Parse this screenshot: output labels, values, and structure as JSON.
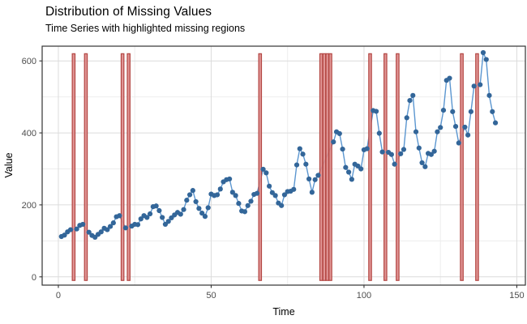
{
  "header": {
    "title": "Distribution of Missing Values",
    "subtitle": "Time Series with highlighted missing regions"
  },
  "chart_data": {
    "type": "line",
    "title": "Distribution of Missing Values",
    "subtitle": "Time Series with highlighted missing regions",
    "xlabel": "Time",
    "ylabel": "Value",
    "xlim": [
      -5.3,
      152.8
    ],
    "ylim": [
      -23,
      641
    ],
    "xticks": [
      0,
      50,
      100,
      150
    ],
    "yticks": [
      0,
      200,
      400,
      600
    ],
    "xtick_labels": [
      "0",
      "50",
      "100",
      "150"
    ],
    "ytick_labels": [
      "0",
      "200",
      "400",
      "600"
    ],
    "x_minor": [
      25,
      75,
      125
    ],
    "y_minor": [
      100,
      300,
      500
    ],
    "grid": true,
    "legend_position": "none",
    "points": [
      [
        1,
        112
      ],
      [
        2,
        116
      ],
      [
        3,
        125
      ],
      [
        4,
        131
      ],
      [
        6,
        133
      ],
      [
        7,
        143
      ],
      [
        8,
        146
      ],
      [
        10,
        124
      ],
      [
        11,
        115
      ],
      [
        12,
        110
      ],
      [
        13,
        118
      ],
      [
        14,
        125
      ],
      [
        15,
        135
      ],
      [
        16,
        131
      ],
      [
        17,
        140
      ],
      [
        18,
        150
      ],
      [
        19,
        167
      ],
      [
        20,
        170
      ],
      [
        22,
        136
      ],
      [
        24,
        141
      ],
      [
        25,
        146
      ],
      [
        26,
        145
      ],
      [
        27,
        161
      ],
      [
        28,
        170
      ],
      [
        29,
        165
      ],
      [
        30,
        175
      ],
      [
        31,
        195
      ],
      [
        32,
        197
      ],
      [
        33,
        184
      ],
      [
        34,
        165
      ],
      [
        35,
        146
      ],
      [
        36,
        154
      ],
      [
        37,
        164
      ],
      [
        38,
        172
      ],
      [
        39,
        179
      ],
      [
        40,
        174
      ],
      [
        41,
        187
      ],
      [
        42,
        213
      ],
      [
        43,
        228
      ],
      [
        44,
        240
      ],
      [
        45,
        209
      ],
      [
        46,
        190
      ],
      [
        47,
        177
      ],
      [
        48,
        168
      ],
      [
        49,
        192
      ],
      [
        50,
        230
      ],
      [
        51,
        226
      ],
      [
        52,
        228
      ],
      [
        53,
        244
      ],
      [
        54,
        264
      ],
      [
        55,
        270
      ],
      [
        56,
        272
      ],
      [
        57,
        235
      ],
      [
        58,
        226
      ],
      [
        59,
        204
      ],
      [
        60,
        183
      ],
      [
        61,
        181
      ],
      [
        62,
        198
      ],
      [
        63,
        210
      ],
      [
        64,
        229
      ],
      [
        65,
        232
      ],
      [
        67,
        299
      ],
      [
        68,
        289
      ],
      [
        69,
        252
      ],
      [
        70,
        234
      ],
      [
        71,
        226
      ],
      [
        72,
        205
      ],
      [
        73,
        198
      ],
      [
        74,
        228
      ],
      [
        75,
        237
      ],
      [
        76,
        238
      ],
      [
        77,
        243
      ],
      [
        78,
        311
      ],
      [
        79,
        356
      ],
      [
        80,
        341
      ],
      [
        81,
        313
      ],
      [
        82,
        272
      ],
      [
        83,
        235
      ],
      [
        84,
        270
      ],
      [
        85,
        282
      ],
      [
        90,
        375
      ],
      [
        91,
        403
      ],
      [
        92,
        398
      ],
      [
        93,
        355
      ],
      [
        94,
        304
      ],
      [
        95,
        291
      ],
      [
        96,
        271
      ],
      [
        97,
        313
      ],
      [
        98,
        308
      ],
      [
        99,
        300
      ],
      [
        100,
        353
      ],
      [
        101,
        356
      ],
      [
        103,
        462
      ],
      [
        104,
        460
      ],
      [
        105,
        399
      ],
      [
        106,
        347
      ],
      [
        108,
        346
      ],
      [
        109,
        340
      ],
      [
        110,
        313
      ],
      [
        112,
        342
      ],
      [
        113,
        354
      ],
      [
        114,
        442
      ],
      [
        115,
        490
      ],
      [
        116,
        504
      ],
      [
        117,
        403
      ],
      [
        118,
        358
      ],
      [
        119,
        317
      ],
      [
        120,
        306
      ],
      [
        121,
        343
      ],
      [
        122,
        340
      ],
      [
        123,
        349
      ],
      [
        124,
        403
      ],
      [
        125,
        415
      ],
      [
        126,
        463
      ],
      [
        127,
        546
      ],
      [
        128,
        552
      ],
      [
        129,
        459
      ],
      [
        130,
        418
      ],
      [
        131,
        372
      ],
      [
        133,
        416
      ],
      [
        134,
        394
      ],
      [
        135,
        459
      ],
      [
        136,
        530
      ],
      [
        138,
        534
      ],
      [
        139,
        623
      ],
      [
        140,
        604
      ],
      [
        141,
        504
      ],
      [
        142,
        459
      ],
      [
        143,
        428
      ]
    ],
    "missing_times": [
      5,
      9,
      21,
      23,
      66,
      86,
      87,
      88,
      89,
      102,
      107,
      111,
      132,
      137
    ],
    "missing_region_width": 0.9,
    "missing_region_ymin": -10,
    "missing_region_ymax": 620,
    "colors": {
      "line": "#5b96d0",
      "point": "#336699",
      "region_fill": "#dd8a8a",
      "region_border": "#b34642",
      "grid_major": "#dcdcdc",
      "grid_minor": "#ededed",
      "panel_border": "#333333",
      "tick": "#333333"
    }
  }
}
